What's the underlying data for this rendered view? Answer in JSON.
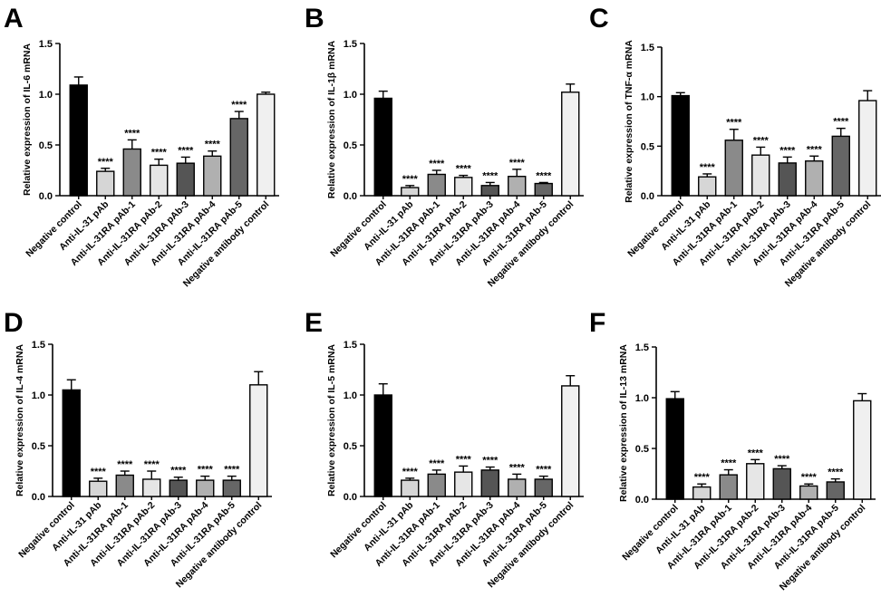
{
  "figure": {
    "colors": {
      "axis": "#000000",
      "bar_fills": [
        "#000000",
        "#d6d6d6",
        "#8a8a8a",
        "#e6e6e6",
        "#555555",
        "#b0b0b0",
        "#666666",
        "#f0f0f0"
      ]
    }
  },
  "chart_data": [
    {
      "panel": "A",
      "type": "bar",
      "ylabel": "Relative expression of IL-6 mRNA",
      "ylim": [
        0,
        1.5
      ],
      "yticks": [
        "0.0",
        "0.5",
        "1.0",
        "1.5"
      ],
      "categories": [
        "Negative control",
        "Anti-IL-31 pAb",
        "Anti-IL-31RA pAb-1",
        "Anti-IL-31RA pAb-2",
        "Anti-IL-31RA pAb-3",
        "Anti-IL-31RA pAb-4",
        "Anti-IL-31RA pAb-5",
        "Negative antibody control"
      ],
      "values": [
        1.09,
        0.24,
        0.46,
        0.3,
        0.32,
        0.39,
        0.76,
        1.0
      ],
      "errors": [
        0.08,
        0.03,
        0.09,
        0.06,
        0.06,
        0.05,
        0.07,
        0.02
      ],
      "significance": [
        "",
        "****",
        "****",
        "****",
        "****",
        "****",
        "****",
        ""
      ]
    },
    {
      "panel": "B",
      "type": "bar",
      "ylabel": "Relative expression of IL-1β mRNA",
      "ylim": [
        0,
        1.5
      ],
      "yticks": [
        "0.0",
        "0.5",
        "1.0",
        "1.5"
      ],
      "categories": [
        "Negative control",
        "Anti-IL-31 pAb",
        "Anti-IL-31RA pAb-1",
        "Anti-IL-31RA pAb-2",
        "Anti-IL-31RA pAb-3",
        "Anti-IL-31RA pAb-4",
        "Anti-IL-31RA pAb-5",
        "Negative antibody control"
      ],
      "values": [
        0.96,
        0.08,
        0.21,
        0.18,
        0.1,
        0.19,
        0.12,
        1.02
      ],
      "errors": [
        0.07,
        0.02,
        0.04,
        0.02,
        0.03,
        0.07,
        0.01,
        0.08
      ],
      "significance": [
        "",
        "****",
        "****",
        "****",
        "****",
        "****",
        "****",
        ""
      ]
    },
    {
      "panel": "C",
      "type": "bar",
      "ylabel": "Relative expression of TNF-α mRNA",
      "ylim": [
        0,
        1.5
      ],
      "yticks": [
        "0.0",
        "0.5",
        "1.0",
        "1.5"
      ],
      "categories": [
        "Negative control",
        "Anti-IL-31 pAb",
        "Anti-IL-31RA pAb-1",
        "Anti-IL-31RA pAb-2",
        "Anti-IL-31RA pAb-3",
        "Anti-IL-31RA pAb-4",
        "Anti-IL-31RA pAb-5",
        "Negative antibody control"
      ],
      "values": [
        1.01,
        0.19,
        0.56,
        0.41,
        0.33,
        0.35,
        0.6,
        0.96
      ],
      "errors": [
        0.03,
        0.03,
        0.11,
        0.08,
        0.06,
        0.05,
        0.08,
        0.1
      ],
      "significance": [
        "",
        "****",
        "****",
        "****",
        "****",
        "****",
        "****",
        ""
      ]
    },
    {
      "panel": "D",
      "type": "bar",
      "ylabel": "Relative expression of IL-4 mRNA",
      "ylim": [
        0,
        1.5
      ],
      "yticks": [
        "0.0",
        "0.5",
        "1.0",
        "1.5"
      ],
      "categories": [
        "Negative control",
        "Anti-IL-31 pAb",
        "Anti-IL-31RA pAb-1",
        "Anti-IL-31RA pAb-2",
        "Anti-IL-31RA pAb-3",
        "Anti-IL-31RA pAb-4",
        "Anti-IL-31RA pAb-5",
        "Negative antibody control"
      ],
      "values": [
        1.05,
        0.15,
        0.21,
        0.17,
        0.16,
        0.16,
        0.16,
        1.1
      ],
      "errors": [
        0.1,
        0.03,
        0.04,
        0.08,
        0.03,
        0.04,
        0.04,
        0.13
      ],
      "significance": [
        "",
        "****",
        "****",
        "****",
        "****",
        "****",
        "****",
        ""
      ]
    },
    {
      "panel": "E",
      "type": "bar",
      "ylabel": "Relative expression of IL-5 mRNA",
      "ylim": [
        0,
        1.5
      ],
      "yticks": [
        "0.0",
        "0.5",
        "1.0",
        "1.5"
      ],
      "categories": [
        "Negative control",
        "Anti-IL-31 pAb",
        "Anti-IL-31RA pAb-1",
        "Anti-IL-31RA pAb-2",
        "Anti-IL-31RA pAb-3",
        "Anti-IL-31RA pAb-4",
        "Anti-IL-31RA pAb-5",
        "Negative antibody control"
      ],
      "values": [
        1.0,
        0.16,
        0.22,
        0.24,
        0.26,
        0.17,
        0.17,
        1.09
      ],
      "errors": [
        0.11,
        0.02,
        0.04,
        0.06,
        0.03,
        0.05,
        0.03,
        0.1
      ],
      "significance": [
        "",
        "****",
        "****",
        "****",
        "****",
        "****",
        "****",
        ""
      ]
    },
    {
      "panel": "F",
      "type": "bar",
      "ylabel": "Relative expression of IL-13 mRNA",
      "ylim": [
        0,
        1.5
      ],
      "yticks": [
        "0.0",
        "0.5",
        "1.0",
        "1.5"
      ],
      "categories": [
        "Negative control",
        "Anti-IL-31 pAb",
        "Anti-IL-31RA pAb-1",
        "Anti-IL-31RA pAb-2",
        "Anti-IL-31RA pAb-3",
        "Anti-IL-31RA pAb-4",
        "Anti-IL-31RA pAb-5",
        "Negative antibody control"
      ],
      "values": [
        0.99,
        0.12,
        0.24,
        0.35,
        0.3,
        0.13,
        0.17,
        0.97
      ],
      "errors": [
        0.07,
        0.03,
        0.05,
        0.04,
        0.03,
        0.02,
        0.03,
        0.07
      ],
      "significance": [
        "",
        "****",
        "****",
        "****",
        "****",
        "****",
        "****",
        ""
      ]
    }
  ]
}
